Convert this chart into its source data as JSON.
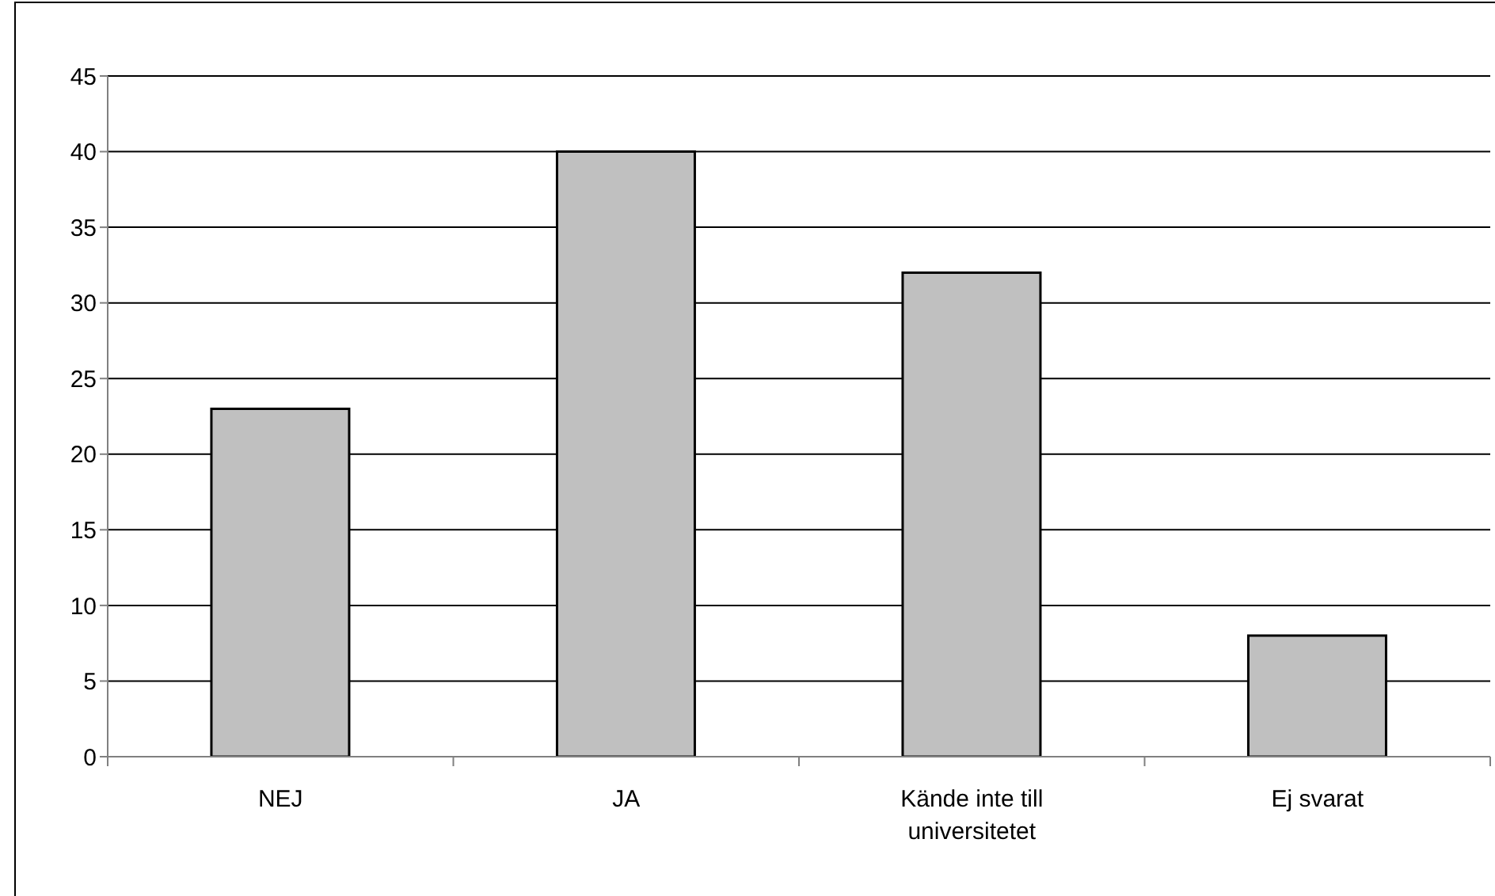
{
  "chart_data": {
    "type": "bar",
    "categories": [
      "NEJ",
      "JA",
      "Kände inte till universitetet",
      "Ej svarat"
    ],
    "values": [
      23,
      40,
      32,
      8
    ],
    "color": "#c0c0c0",
    "ylim": [
      0,
      45
    ],
    "yticks": [
      0,
      5,
      10,
      15,
      20,
      25,
      30,
      35,
      40,
      45
    ],
    "grid": "y"
  }
}
